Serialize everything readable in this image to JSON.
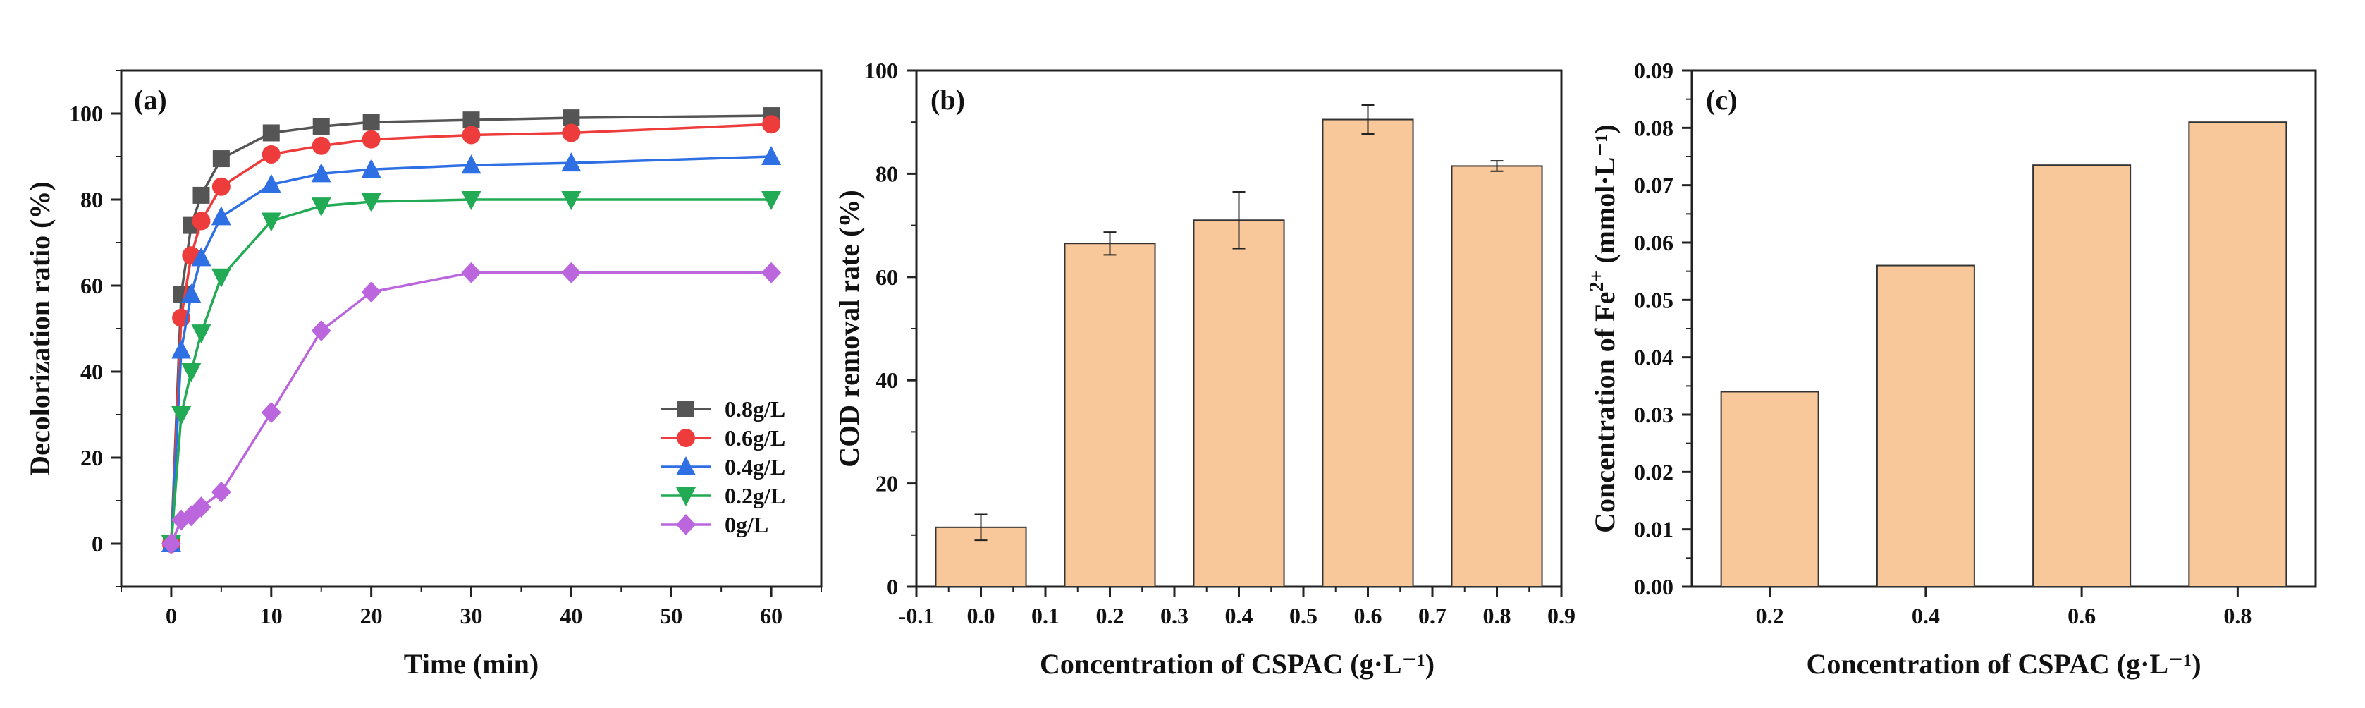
{
  "chart_data": [
    {
      "panel": "(a)",
      "type": "line",
      "xlabel": "Time (min)",
      "ylabel": "Decolorization ratio (%)",
      "xlim": [
        -5,
        65
      ],
      "ylim": [
        -10,
        110
      ],
      "xticks": [
        0,
        10,
        20,
        30,
        40,
        50,
        60
      ],
      "yticks": [
        0,
        20,
        40,
        60,
        80,
        100
      ],
      "x": [
        0,
        1,
        2,
        3,
        5,
        10,
        15,
        20,
        30,
        40,
        60
      ],
      "legend_position": "bottom-right",
      "series": [
        {
          "name": "0.8g/L",
          "color": "#555555",
          "marker": "square",
          "values": [
            0,
            58,
            74,
            81,
            89.5,
            95.5,
            97,
            98,
            98.5,
            99,
            99.5
          ]
        },
        {
          "name": "0.6g/L",
          "color": "#ee3b3b",
          "marker": "circle",
          "values": [
            0,
            52.5,
            67,
            75,
            83,
            90.5,
            92.5,
            94,
            95,
            95.5,
            97.5
          ]
        },
        {
          "name": "0.4g/L",
          "color": "#2f6fe4",
          "marker": "triangle-up",
          "values": [
            0,
            45,
            58,
            66.5,
            76,
            83.5,
            86,
            87,
            88,
            88.5,
            90
          ]
        },
        {
          "name": "0.2g/L",
          "color": "#22aa55",
          "marker": "triangle-down",
          "values": [
            0,
            30,
            40,
            49,
            62,
            75,
            78.5,
            79.5,
            80,
            80,
            80
          ]
        },
        {
          "name": "0g/L",
          "color": "#bb66dd",
          "marker": "diamond",
          "values": [
            0,
            5.5,
            6.5,
            8.5,
            12,
            30.5,
            49.5,
            58.5,
            63,
            63,
            63
          ]
        }
      ]
    },
    {
      "panel": "(b)",
      "type": "bar",
      "xlabel": "Concentration of CSPAC (g·L⁻¹)",
      "ylabel": "COD removal rate (%)",
      "xlim": [
        -0.1,
        0.9
      ],
      "ylim": [
        0,
        100
      ],
      "xticks": [
        "-0.1",
        "0.0",
        "0.1",
        "0.2",
        "0.3",
        "0.4",
        "0.5",
        "0.6",
        "0.7",
        "0.8",
        "0.9"
      ],
      "yticks": [
        0,
        20,
        40,
        60,
        80,
        100
      ],
      "x": [
        0.0,
        0.2,
        0.4,
        0.6,
        0.8
      ],
      "values": [
        11.5,
        66.5,
        71,
        90.5,
        81.5
      ],
      "errors": [
        2.5,
        2.2,
        5.5,
        2.8,
        1.0
      ],
      "bar_color": "#f8c89a"
    },
    {
      "panel": "(c)",
      "type": "bar",
      "xlabel": "Concentration of CSPAC (g·L⁻¹)",
      "ylabel_prefix": "Concentration of Fe",
      "ylabel_sup": "2+",
      "ylabel_suffix": " (mmol·L⁻¹)",
      "categories": [
        "0.2",
        "0.4",
        "0.6",
        "0.8"
      ],
      "values": [
        0.034,
        0.056,
        0.0735,
        0.081
      ],
      "ylim": [
        0,
        0.09
      ],
      "yticks": [
        "0.00",
        "0.01",
        "0.02",
        "0.03",
        "0.04",
        "0.05",
        "0.06",
        "0.07",
        "0.08",
        "0.09"
      ],
      "bar_color": "#f8c89a"
    }
  ]
}
